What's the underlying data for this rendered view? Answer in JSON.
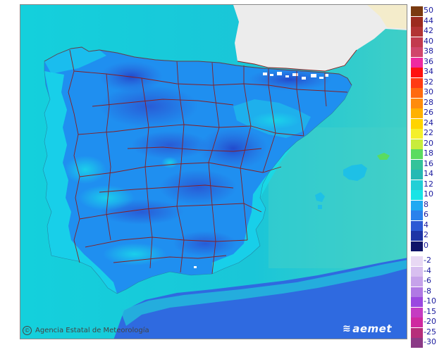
{
  "attribution": {
    "icon": "copyright-icon",
    "symbol": "©",
    "text": "Agencia Estatal de Meteorología"
  },
  "brand": {
    "icon": "aemet-swirl-icon",
    "symbol": "≋",
    "text": "aemet"
  },
  "colors": {
    "sea_cool": "#14d2dc",
    "sea_teal": "#4fd3c2",
    "land_base": "#1f8ff0",
    "land_deep": "#2e5fd8",
    "land_darkest": "#2342c8",
    "coast_cyan": "#18dae8",
    "border_red": "#8b1a1a",
    "france_land": "#ececec",
    "africa_sea": "#2f6ae0"
  },
  "legend": {
    "positive": [
      {
        "label": "50",
        "color": "#7a3a10"
      },
      {
        "label": "44",
        "color": "#9c2b1f"
      },
      {
        "label": "42",
        "color": "#b23434"
      },
      {
        "label": "40",
        "color": "#c23a4d"
      },
      {
        "label": "38",
        "color": "#d0466b"
      },
      {
        "label": "36",
        "color": "#ee2aa0"
      },
      {
        "label": "34",
        "color": "#ff1010"
      },
      {
        "label": "32",
        "color": "#ff3b14"
      },
      {
        "label": "30",
        "color": "#ff6a10"
      },
      {
        "label": "28",
        "color": "#ff8c0c"
      },
      {
        "label": "26",
        "color": "#ffb100"
      },
      {
        "label": "24",
        "color": "#ffd400"
      },
      {
        "label": "22",
        "color": "#f4ef2c"
      },
      {
        "label": "20",
        "color": "#c8ec3c"
      },
      {
        "label": "18",
        "color": "#5adc60"
      },
      {
        "label": "16",
        "color": "#33c39a"
      },
      {
        "label": "14",
        "color": "#25b9b4"
      },
      {
        "label": "12",
        "color": "#22cfd6"
      },
      {
        "label": "10",
        "color": "#18e4e6"
      },
      {
        "label": "8",
        "color": "#20a9f2"
      },
      {
        "label": "6",
        "color": "#2a82ec"
      },
      {
        "label": "4",
        "color": "#2c59d4"
      },
      {
        "label": "2",
        "color": "#1e34a6"
      },
      {
        "label": "0",
        "color": "#101468"
      }
    ],
    "negative": [
      {
        "label": "-2",
        "color": "#e8d8f4"
      },
      {
        "label": "-4",
        "color": "#d8bff0"
      },
      {
        "label": "-6",
        "color": "#c6a2ea"
      },
      {
        "label": "-8",
        "color": "#b079e4"
      },
      {
        "label": "-10",
        "color": "#9a48e0"
      },
      {
        "label": "-15",
        "color": "#c53cc2"
      },
      {
        "label": "-20",
        "color": "#cf2aa0"
      },
      {
        "label": "-25",
        "color": "#b62e7a"
      },
      {
        "label": "-30",
        "color": "#8b3a86"
      }
    ]
  }
}
